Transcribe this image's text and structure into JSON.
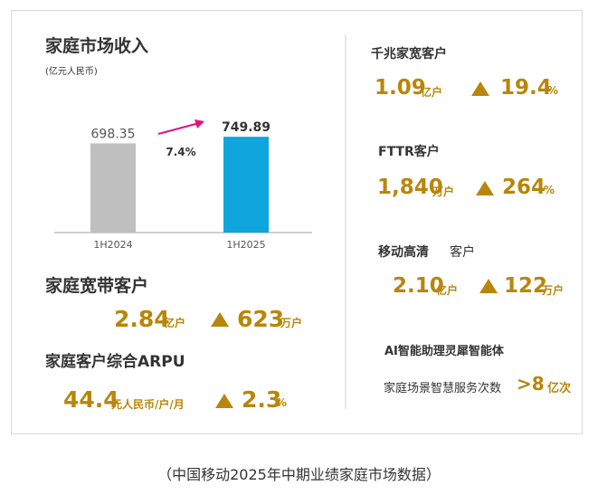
{
  "left": {
    "chart_title": "家庭市场收入",
    "chart_unit": "(亿元人民币)",
    "broadband_title": "家庭宽带客户",
    "broadband_value": "2.84",
    "broadband_unit": "亿户",
    "broadband_growth": "623",
    "broadband_growth_unit": "万户",
    "arpu_title": "家庭客户综合ARPU",
    "arpu_value": "44.4",
    "arpu_unit": "元人民币/户/月",
    "arpu_growth": "2.3",
    "arpu_growth_unit": "%"
  },
  "right": {
    "gigabit_title": "千兆家宽客户",
    "gigabit_value": "1.09",
    "gigabit_unit": "亿户",
    "gigabit_growth": "19.4",
    "gigabit_growth_unit": "%",
    "fttr_title": "FTTR客户",
    "fttr_value": "1,840",
    "fttr_unit": "万户",
    "fttr_growth": "264",
    "fttr_growth_unit": "%",
    "hd_title": "移动高清",
    "hd_title_suffix": "客户",
    "hd_value": "2.10",
    "hd_unit": "亿户",
    "hd_growth": "122",
    "hd_growth_unit": "万户",
    "ai_title": "AI智能助理灵犀智能体",
    "ai_desc": "家庭场景智慧服务次数",
    "ai_value": ">8",
    "ai_unit": "亿次"
  },
  "caption": "（中国移动2025年中期业绩家庭市场数据）",
  "colors": {
    "gold": "#b8860b",
    "bar_prev": "#bfbfbf",
    "bar_curr": "#0ea5dc",
    "arrow": "#e0147f"
  },
  "chart_data": {
    "type": "bar",
    "categories": [
      "1H2024",
      "1H2025"
    ],
    "values": [
      698.35,
      749.89
    ],
    "value_labels": [
      "698.35",
      "749.89"
    ],
    "growth_label": "7.4%",
    "title": "家庭市场收入",
    "ylabel": "(亿元人民币)",
    "ylim": [
      0,
      850
    ]
  }
}
